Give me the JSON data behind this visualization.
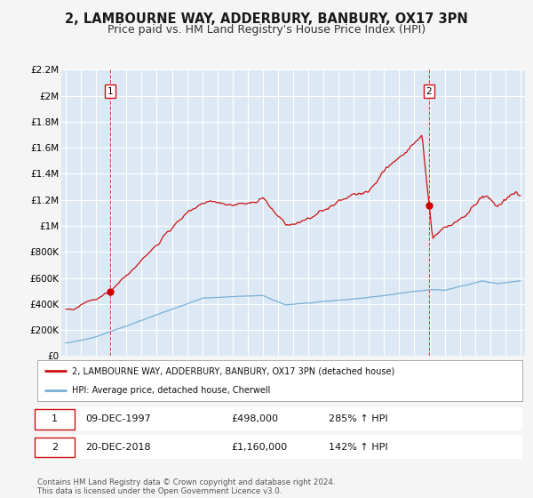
{
  "title": "2, LAMBOURNE WAY, ADDERBURY, BANBURY, OX17 3PN",
  "subtitle": "Price paid vs. HM Land Registry's House Price Index (HPI)",
  "title_fontsize": 10.5,
  "subtitle_fontsize": 9,
  "background_color": "#f5f5f5",
  "plot_bg_color": "#dce9f5",
  "grid_color": "#ffffff",
  "hpi_line_color": "#7aafd4",
  "price_line_color": "#cc1111",
  "marker_color": "#cc0000",
  "sale1_date_x": 1997.94,
  "sale1_price": 498000,
  "sale2_date_x": 2018.97,
  "sale2_price": 1160000,
  "ylim": [
    0,
    2200000
  ],
  "xlim_left": 1994.7,
  "xlim_right": 2025.3,
  "legend_label_price": "2, LAMBOURNE WAY, ADDERBURY, BANBURY, OX17 3PN (detached house)",
  "legend_label_hpi": "HPI: Average price, detached house, Cherwell",
  "annotation1_label": "1",
  "annotation2_label": "2",
  "table_row1": [
    "1",
    "09-DEC-1997",
    "£498,000",
    "285% ↑ HPI"
  ],
  "table_row2": [
    "2",
    "20-DEC-2018",
    "£1,160,000",
    "142% ↑ HPI"
  ],
  "footer": "Contains HM Land Registry data © Crown copyright and database right 2024.\nThis data is licensed under the Open Government Licence v3.0.",
  "yticks": [
    0,
    200000,
    400000,
    600000,
    800000,
    1000000,
    1200000,
    1400000,
    1600000,
    1800000,
    2000000,
    2200000
  ],
  "ytick_labels": [
    "£0",
    "£200K",
    "£400K",
    "£600K",
    "£800K",
    "£1M",
    "£1.2M",
    "£1.4M",
    "£1.6M",
    "£1.8M",
    "£2M",
    "£2.2M"
  ]
}
